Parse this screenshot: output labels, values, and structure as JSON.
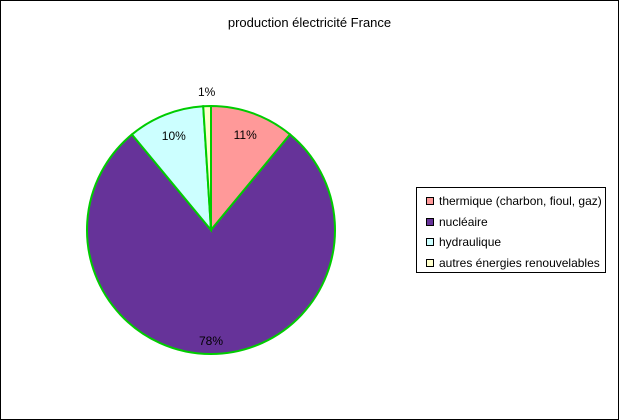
{
  "chart_data": {
    "type": "pie",
    "title": "production électricité France",
    "slices": [
      {
        "label": "thermique (charbon, fioul, gaz)",
        "value": 11,
        "value_label": "11%",
        "color": "#ff9999"
      },
      {
        "label": "nucléaire",
        "value": 78,
        "value_label": "78%",
        "color": "#663399"
      },
      {
        "label": "hydraulique",
        "value": 10,
        "value_label": "10%",
        "color": "#ccffff"
      },
      {
        "label": "autres énergies renouvelables",
        "value": 1,
        "value_label": "1%",
        "color": "#ffffcc"
      }
    ],
    "slice_border_color": "#00cc00",
    "legend_position": "right"
  }
}
